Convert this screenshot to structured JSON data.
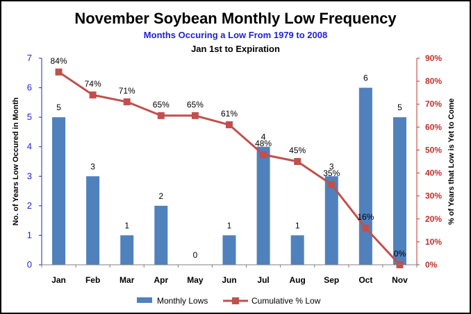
{
  "chart_data": {
    "type": "bar",
    "title": "November Soybean Monthly Low Frequency",
    "subtitle": "Months Occuring  a Low From 1979  to 2008",
    "subtitle2": "Jan 1st to Expiration",
    "categories": [
      "Jan",
      "Feb",
      "Mar",
      "Apr",
      "May",
      "Jun",
      "Jul",
      "Aug",
      "Sep",
      "Oct",
      "Nov"
    ],
    "series": [
      {
        "name": "Monthly Lows",
        "type": "bar",
        "axis": "left",
        "color": "#4f81bd",
        "values": [
          5,
          3,
          1,
          2,
          0,
          1,
          4,
          1,
          3,
          6,
          5
        ],
        "labels": [
          "5",
          "3",
          "1",
          "2",
          "0",
          "1",
          "4",
          "1",
          "3",
          "6",
          "5"
        ]
      },
      {
        "name": "Cumulative % Low",
        "type": "line",
        "axis": "right",
        "color": "#c0504d",
        "values": [
          84,
          74,
          71,
          65,
          65,
          61,
          48,
          45,
          35,
          16,
          0
        ],
        "labels": [
          "84%",
          "74%",
          "71%",
          "65%",
          "65%",
          "61%",
          "48%",
          "45%",
          "35%",
          "16%",
          "0%"
        ]
      }
    ],
    "ylabel": "No. of Years Low Occured in Month",
    "y2label": "% of Years that Low is Yet to Come",
    "ylim": [
      0,
      7
    ],
    "y2lim": [
      0,
      90
    ],
    "yticks": [
      "0",
      "1",
      "2",
      "3",
      "4",
      "5",
      "6",
      "7"
    ],
    "y2ticks": [
      "0%",
      "10%",
      "20%",
      "30%",
      "40%",
      "50%",
      "60%",
      "70%",
      "80%",
      "90%"
    ],
    "grid": false,
    "legend": "bottom"
  }
}
